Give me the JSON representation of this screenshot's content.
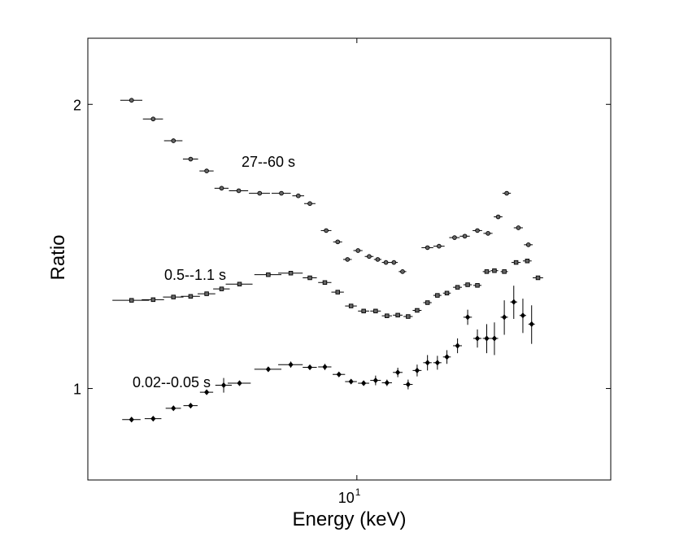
{
  "chart_data": {
    "type": "scatter",
    "title": "",
    "xlabel": "Energy (keV)",
    "ylabel": "Ratio",
    "xscale": "log",
    "yscale": "log",
    "xlim": [
      3.1,
      30.2
    ],
    "ylim": [
      0.8,
      2.35
    ],
    "x_tick_label": {
      "base": "10",
      "exp": "1",
      "value": 10
    },
    "y_ticks": [
      {
        "value": 1,
        "label": "1"
      },
      {
        "value": 2,
        "label": "2"
      }
    ],
    "series": [
      {
        "name": "27--60 s",
        "label": "27--60 s",
        "marker": "circle",
        "points": [
          {
            "x": 3.75,
            "xerr": 0.18,
            "y": 2.02,
            "yerr": 0.004
          },
          {
            "x": 4.12,
            "xerr": 0.18,
            "y": 1.93,
            "yerr": 0.004
          },
          {
            "x": 4.5,
            "xerr": 0.18,
            "y": 1.83,
            "yerr": 0.004
          },
          {
            "x": 4.85,
            "xerr": 0.16,
            "y": 1.75,
            "yerr": 0.004
          },
          {
            "x": 5.2,
            "xerr": 0.16,
            "y": 1.7,
            "yerr": 0.004
          },
          {
            "x": 5.55,
            "xerr": 0.17,
            "y": 1.63,
            "yerr": 0.004
          },
          {
            "x": 5.98,
            "xerr": 0.25,
            "y": 1.62,
            "yerr": 0.004
          },
          {
            "x": 6.55,
            "xerr": 0.3,
            "y": 1.61,
            "yerr": 0.004
          },
          {
            "x": 7.2,
            "xerr": 0.3,
            "y": 1.61,
            "yerr": 0.004
          },
          {
            "x": 7.75,
            "xerr": 0.2,
            "y": 1.6,
            "yerr": 0.004
          },
          {
            "x": 8.15,
            "xerr": 0.2,
            "y": 1.57,
            "yerr": 0.004
          },
          {
            "x": 8.75,
            "xerr": 0.2,
            "y": 1.47,
            "yerr": 0.004
          },
          {
            "x": 9.2,
            "xerr": 0.18,
            "y": 1.43,
            "yerr": 0.004
          },
          {
            "x": 9.6,
            "xerr": 0.18,
            "y": 1.37,
            "yerr": 0.004
          },
          {
            "x": 10.05,
            "xerr": 0.2,
            "y": 1.4,
            "yerr": 0.004
          },
          {
            "x": 10.55,
            "xerr": 0.2,
            "y": 1.38,
            "yerr": 0.004
          },
          {
            "x": 10.95,
            "xerr": 0.18,
            "y": 1.37,
            "yerr": 0.004
          },
          {
            "x": 11.35,
            "xerr": 0.2,
            "y": 1.36,
            "yerr": 0.004
          },
          {
            "x": 11.75,
            "xerr": 0.2,
            "y": 1.36,
            "yerr": 0.004
          },
          {
            "x": 12.2,
            "xerr": 0.2,
            "y": 1.33,
            "yerr": 0.004
          },
          {
            "x": 13.6,
            "xerr": 0.35,
            "y": 1.41,
            "yerr": 0.004
          },
          {
            "x": 14.3,
            "xerr": 0.35,
            "y": 1.415,
            "yerr": 0.004
          },
          {
            "x": 15.3,
            "xerr": 0.35,
            "y": 1.445,
            "yerr": 0.004
          },
          {
            "x": 16.0,
            "xerr": 0.35,
            "y": 1.45,
            "yerr": 0.004
          },
          {
            "x": 16.9,
            "xerr": 0.35,
            "y": 1.47,
            "yerr": 0.004
          },
          {
            "x": 17.7,
            "xerr": 0.35,
            "y": 1.46,
            "yerr": 0.004
          },
          {
            "x": 18.5,
            "xerr": 0.35,
            "y": 1.52,
            "yerr": 0.004
          },
          {
            "x": 19.2,
            "xerr": 0.35,
            "y": 1.61,
            "yerr": 0.004
          },
          {
            "x": 20.2,
            "xerr": 0.4,
            "y": 1.48,
            "yerr": 0.004
          },
          {
            "x": 21.1,
            "xerr": 0.4,
            "y": 1.42,
            "yerr": 0.004
          }
        ]
      },
      {
        "name": "0.5--1.1 s",
        "label": "0.5--1.1 s",
        "marker": "square",
        "points": [
          {
            "x": 3.75,
            "xerr": 0.3,
            "y": 1.24,
            "yerr": 0.004
          },
          {
            "x": 4.12,
            "xerr": 0.2,
            "y": 1.242,
            "yerr": 0.004
          },
          {
            "x": 4.5,
            "xerr": 0.2,
            "y": 1.25,
            "yerr": 0.004
          },
          {
            "x": 4.85,
            "xerr": 0.2,
            "y": 1.252,
            "yerr": 0.004
          },
          {
            "x": 5.2,
            "xerr": 0.2,
            "y": 1.26,
            "yerr": 0.004
          },
          {
            "x": 5.55,
            "xerr": 0.2,
            "y": 1.275,
            "yerr": 0.004
          },
          {
            "x": 6.0,
            "xerr": 0.35,
            "y": 1.29,
            "yerr": 0.004
          },
          {
            "x": 6.8,
            "xerr": 0.4,
            "y": 1.32,
            "yerr": 0.004
          },
          {
            "x": 7.5,
            "xerr": 0.4,
            "y": 1.325,
            "yerr": 0.004
          },
          {
            "x": 8.15,
            "xerr": 0.25,
            "y": 1.31,
            "yerr": 0.004
          },
          {
            "x": 8.7,
            "xerr": 0.25,
            "y": 1.295,
            "yerr": 0.004
          },
          {
            "x": 9.2,
            "xerr": 0.25,
            "y": 1.265,
            "yerr": 0.004
          },
          {
            "x": 9.75,
            "xerr": 0.25,
            "y": 1.223,
            "yerr": 0.004
          },
          {
            "x": 10.3,
            "xerr": 0.25,
            "y": 1.208,
            "yerr": 0.004
          },
          {
            "x": 10.85,
            "xerr": 0.25,
            "y": 1.208,
            "yerr": 0.004
          },
          {
            "x": 11.4,
            "xerr": 0.25,
            "y": 1.194,
            "yerr": 0.004
          },
          {
            "x": 11.95,
            "xerr": 0.25,
            "y": 1.196,
            "yerr": 0.004
          },
          {
            "x": 12.5,
            "xerr": 0.25,
            "y": 1.192,
            "yerr": 0.004
          },
          {
            "x": 13.0,
            "xerr": 0.25,
            "y": 1.21,
            "yerr": 0.004
          },
          {
            "x": 13.6,
            "xerr": 0.25,
            "y": 1.233,
            "yerr": 0.004
          },
          {
            "x": 14.2,
            "xerr": 0.25,
            "y": 1.255,
            "yerr": 0.004
          },
          {
            "x": 14.8,
            "xerr": 0.25,
            "y": 1.262,
            "yerr": 0.004
          },
          {
            "x": 15.5,
            "xerr": 0.3,
            "y": 1.28,
            "yerr": 0.004
          },
          {
            "x": 16.2,
            "xerr": 0.3,
            "y": 1.288,
            "yerr": 0.004
          },
          {
            "x": 16.9,
            "xerr": 0.3,
            "y": 1.286,
            "yerr": 0.004
          },
          {
            "x": 17.6,
            "xerr": 0.3,
            "y": 1.33,
            "yerr": 0.004
          },
          {
            "x": 18.2,
            "xerr": 0.3,
            "y": 1.333,
            "yerr": 0.004
          },
          {
            "x": 19.0,
            "xerr": 0.3,
            "y": 1.33,
            "yerr": 0.004
          },
          {
            "x": 20.0,
            "xerr": 0.4,
            "y": 1.36,
            "yerr": 0.004
          },
          {
            "x": 21.0,
            "xerr": 0.4,
            "y": 1.365,
            "yerr": 0.004
          },
          {
            "x": 22.0,
            "xerr": 0.5,
            "y": 1.31,
            "yerr": 0.004
          }
        ]
      },
      {
        "name": "0.02--0.05 s",
        "label": "0.02--0.05 s",
        "marker": "diamond",
        "points": [
          {
            "x": 3.75,
            "xerr": 0.15,
            "y": 0.927,
            "yerr": 0.004
          },
          {
            "x": 4.12,
            "xerr": 0.15,
            "y": 0.929,
            "yerr": 0.004
          },
          {
            "x": 4.5,
            "xerr": 0.15,
            "y": 0.953,
            "yerr": 0.004
          },
          {
            "x": 4.85,
            "xerr": 0.15,
            "y": 0.959,
            "yerr": 0.004
          },
          {
            "x": 5.2,
            "xerr": 0.15,
            "y": 0.991,
            "yerr": 0.004
          },
          {
            "x": 5.6,
            "xerr": 0.2,
            "y": 1.008,
            "yerr": 0.018
          },
          {
            "x": 6.0,
            "xerr": 0.3,
            "y": 1.013,
            "yerr": 0.004
          },
          {
            "x": 6.8,
            "xerr": 0.4,
            "y": 1.048,
            "yerr": 0.004
          },
          {
            "x": 7.5,
            "xerr": 0.4,
            "y": 1.06,
            "yerr": 0.008
          },
          {
            "x": 8.15,
            "xerr": 0.25,
            "y": 1.053,
            "yerr": 0.004
          },
          {
            "x": 8.7,
            "xerr": 0.25,
            "y": 1.054,
            "yerr": 0.008
          },
          {
            "x": 9.25,
            "xerr": 0.25,
            "y": 1.035,
            "yerr": 0.004
          },
          {
            "x": 9.75,
            "xerr": 0.25,
            "y": 1.017,
            "yerr": 0.004
          },
          {
            "x": 10.3,
            "xerr": 0.25,
            "y": 1.013,
            "yerr": 0.004
          },
          {
            "x": 10.85,
            "xerr": 0.25,
            "y": 1.02,
            "yerr": 0.012
          },
          {
            "x": 11.4,
            "xerr": 0.25,
            "y": 1.014,
            "yerr": 0.008
          },
          {
            "x": 11.95,
            "xerr": 0.25,
            "y": 1.04,
            "yerr": 0.012
          },
          {
            "x": 12.5,
            "xerr": 0.25,
            "y": 1.01,
            "yerr": 0.012
          },
          {
            "x": 13.0,
            "xerr": 0.25,
            "y": 1.045,
            "yerr": 0.015
          },
          {
            "x": 13.6,
            "xerr": 0.25,
            "y": 1.065,
            "yerr": 0.02
          },
          {
            "x": 14.2,
            "xerr": 0.25,
            "y": 1.065,
            "yerr": 0.018
          },
          {
            "x": 14.8,
            "xerr": 0.25,
            "y": 1.08,
            "yerr": 0.018
          },
          {
            "x": 15.5,
            "xerr": 0.3,
            "y": 1.11,
            "yerr": 0.02
          },
          {
            "x": 16.2,
            "xerr": 0.3,
            "y": 1.19,
            "yerr": 0.022
          },
          {
            "x": 16.9,
            "xerr": 0.3,
            "y": 1.13,
            "yerr": 0.025
          },
          {
            "x": 17.6,
            "xerr": 0.3,
            "y": 1.13,
            "yerr": 0.04
          },
          {
            "x": 18.2,
            "xerr": 0.3,
            "y": 1.13,
            "yerr": 0.045
          },
          {
            "x": 19.0,
            "xerr": 0.3,
            "y": 1.19,
            "yerr": 0.05
          },
          {
            "x": 19.8,
            "xerr": 0.3,
            "y": 1.235,
            "yerr": 0.05
          },
          {
            "x": 20.6,
            "xerr": 0.3,
            "y": 1.195,
            "yerr": 0.05
          },
          {
            "x": 21.4,
            "xerr": 0.3,
            "y": 1.17,
            "yerr": 0.055
          }
        ]
      }
    ]
  }
}
